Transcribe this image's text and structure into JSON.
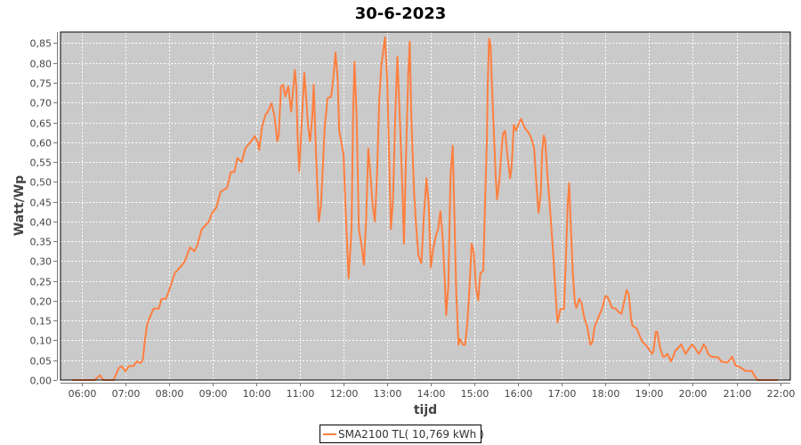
{
  "chart_data": {
    "type": "line",
    "title": "30-6-2023",
    "xlabel": "tijd",
    "ylabel": "Watt/Wp",
    "xlim": [
      "05:31",
      "22:14"
    ],
    "ylim": [
      0,
      0.878
    ],
    "grid": true,
    "legend_position": "bottom",
    "x_ticks": [
      "06:00",
      "07:00",
      "08:00",
      "09:00",
      "10:00",
      "11:00",
      "12:00",
      "13:00",
      "14:00",
      "15:00",
      "16:00",
      "17:00",
      "18:00",
      "19:00",
      "20:00",
      "21:00",
      "22:00"
    ],
    "y_ticks": [
      "0,00",
      "0,05",
      "0,10",
      "0,15",
      "0,20",
      "0,25",
      "0,30",
      "0,35",
      "0,40",
      "0,45",
      "0,50",
      "0,55",
      "0,60",
      "0,65",
      "0,70",
      "0,75",
      "0,80",
      "0,85"
    ],
    "colors": {
      "series": "#ff7f3f",
      "plot_background": "#cacaca",
      "grid": "#ffffff"
    },
    "series": [
      {
        "name": "SMA2100 TL( 10,769 kWh )",
        "points": [
          [
            "05:47",
            0
          ],
          [
            "06:18",
            0
          ],
          [
            "06:25",
            0.012
          ],
          [
            "06:30",
            0
          ],
          [
            "06:44",
            0
          ],
          [
            "06:51",
            0.03
          ],
          [
            "06:55",
            0.035
          ],
          [
            "07:00",
            0.022
          ],
          [
            "07:05",
            0.035
          ],
          [
            "07:11",
            0.035
          ],
          [
            "07:16",
            0.047
          ],
          [
            "07:21",
            0.043
          ],
          [
            "07:24",
            0.05
          ],
          [
            "07:27",
            0.1
          ],
          [
            "07:30",
            0.14
          ],
          [
            "07:33",
            0.155
          ],
          [
            "07:39",
            0.18
          ],
          [
            "07:46",
            0.18
          ],
          [
            "07:50",
            0.205
          ],
          [
            "07:56",
            0.205
          ],
          [
            "08:00",
            0.225
          ],
          [
            "08:08",
            0.27
          ],
          [
            "08:18",
            0.29
          ],
          [
            "08:22",
            0.3
          ],
          [
            "08:29",
            0.335
          ],
          [
            "08:35",
            0.325
          ],
          [
            "08:39",
            0.34
          ],
          [
            "08:45",
            0.38
          ],
          [
            "08:55",
            0.4
          ],
          [
            "08:59",
            0.42
          ],
          [
            "09:05",
            0.435
          ],
          [
            "09:11",
            0.475
          ],
          [
            "09:20",
            0.485
          ],
          [
            "09:25",
            0.525
          ],
          [
            "09:30",
            0.525
          ],
          [
            "09:34",
            0.56
          ],
          [
            "09:40",
            0.55
          ],
          [
            "09:45",
            0.585
          ],
          [
            "09:54",
            0.605
          ],
          [
            "09:58",
            0.615
          ],
          [
            "10:02",
            0.6
          ],
          [
            "10:04",
            0.58
          ],
          [
            "10:08",
            0.64
          ],
          [
            "10:13",
            0.67
          ],
          [
            "10:15",
            0.674
          ],
          [
            "10:21",
            0.698
          ],
          [
            "10:25",
            0.666
          ],
          [
            "10:29",
            0.602
          ],
          [
            "10:31",
            0.62
          ],
          [
            "10:34",
            0.741
          ],
          [
            "10:37",
            0.745
          ],
          [
            "10:40",
            0.715
          ],
          [
            "10:44",
            0.741
          ],
          [
            "10:48",
            0.677
          ],
          [
            "10:53",
            0.782
          ],
          [
            "10:55",
            0.741
          ],
          [
            "10:57",
            0.606
          ],
          [
            "10:59",
            0.527
          ],
          [
            "11:03",
            0.666
          ],
          [
            "11:06",
            0.775
          ],
          [
            "11:09",
            0.704
          ],
          [
            "11:11",
            0.644
          ],
          [
            "11:14",
            0.602
          ],
          [
            "11:17",
            0.666
          ],
          [
            "11:19",
            0.745
          ],
          [
            "11:22",
            0.576
          ],
          [
            "11:26",
            0.4
          ],
          [
            "11:29",
            0.441
          ],
          [
            "11:34",
            0.636
          ],
          [
            "11:38",
            0.711
          ],
          [
            "11:43",
            0.715
          ],
          [
            "11:46",
            0.764
          ],
          [
            "11:49",
            0.827
          ],
          [
            "11:52",
            0.756
          ],
          [
            "11:54",
            0.629
          ],
          [
            "12:00",
            0.569
          ],
          [
            "12:03",
            0.419
          ],
          [
            "12:07",
            0.257
          ],
          [
            "12:11",
            0.381
          ],
          [
            "12:13",
            0.666
          ],
          [
            "12:15",
            0.803
          ],
          [
            "12:18",
            0.666
          ],
          [
            "12:21",
            0.381
          ],
          [
            "12:25",
            0.336
          ],
          [
            "12:28",
            0.291
          ],
          [
            "12:31",
            0.404
          ],
          [
            "12:34",
            0.584
          ],
          [
            "12:37",
            0.516
          ],
          [
            "12:40",
            0.441
          ],
          [
            "12:43",
            0.4
          ],
          [
            "12:46",
            0.516
          ],
          [
            "12:49",
            0.704
          ],
          [
            "12:52",
            0.794
          ],
          [
            "12:57",
            0.865
          ],
          [
            "13:00",
            0.756
          ],
          [
            "13:03",
            0.539
          ],
          [
            "13:05",
            0.381
          ],
          [
            "13:08",
            0.456
          ],
          [
            "13:11",
            0.666
          ],
          [
            "13:14",
            0.816
          ],
          [
            "13:18",
            0.629
          ],
          [
            "13:21",
            0.479
          ],
          [
            "13:23",
            0.344
          ],
          [
            "13:26",
            0.576
          ],
          [
            "13:29",
            0.779
          ],
          [
            "13:31",
            0.854
          ],
          [
            "13:33",
            0.666
          ],
          [
            "13:37",
            0.471
          ],
          [
            "13:40",
            0.381
          ],
          [
            "13:43",
            0.314
          ],
          [
            "13:47",
            0.295
          ],
          [
            "13:50",
            0.404
          ],
          [
            "13:54",
            0.509
          ],
          [
            "13:57",
            0.441
          ],
          [
            "14:00",
            0.284
          ],
          [
            "14:03",
            0.329
          ],
          [
            "14:07",
            0.366
          ],
          [
            "14:10",
            0.381
          ],
          [
            "14:13",
            0.426
          ],
          [
            "14:16",
            0.366
          ],
          [
            "14:19",
            0.254
          ],
          [
            "14:21",
            0.164
          ],
          [
            "14:24",
            0.239
          ],
          [
            "14:27",
            0.516
          ],
          [
            "14:30",
            0.591
          ],
          [
            "14:32",
            0.441
          ],
          [
            "14:35",
            0.216
          ],
          [
            "14:38",
            0.089
          ],
          [
            "14:40",
            0.104
          ],
          [
            "14:44",
            0.089
          ],
          [
            "14:47",
            0.089
          ],
          [
            "14:50",
            0.141
          ],
          [
            "14:53",
            0.231
          ],
          [
            "14:56",
            0.344
          ],
          [
            "14:59",
            0.321
          ],
          [
            "15:02",
            0.231
          ],
          [
            "15:05",
            0.201
          ],
          [
            "15:08",
            0.269
          ],
          [
            "15:12",
            0.276
          ],
          [
            "15:15",
            0.479
          ],
          [
            "15:17",
            0.606
          ],
          [
            "15:18",
            0.734
          ],
          [
            "15:20",
            0.861
          ],
          [
            "15:22",
            0.846
          ],
          [
            "15:24",
            0.741
          ],
          [
            "15:26",
            0.651
          ],
          [
            "15:29",
            0.516
          ],
          [
            "15:31",
            0.456
          ],
          [
            "15:34",
            0.501
          ],
          [
            "15:37",
            0.576
          ],
          [
            "15:39",
            0.621
          ],
          [
            "15:42",
            0.629
          ],
          [
            "15:45",
            0.569
          ],
          [
            "15:49",
            0.509
          ],
          [
            "15:51",
            0.539
          ],
          [
            "15:54",
            0.644
          ],
          [
            "15:57",
            0.629
          ],
          [
            "16:00",
            0.644
          ],
          [
            "16:04",
            0.659
          ],
          [
            "16:09",
            0.636
          ],
          [
            "16:14",
            0.625
          ],
          [
            "16:18",
            0.61
          ],
          [
            "16:22",
            0.584
          ],
          [
            "16:25",
            0.494
          ],
          [
            "16:28",
            0.422
          ],
          [
            "16:31",
            0.471
          ],
          [
            "16:33",
            0.576
          ],
          [
            "16:35",
            0.617
          ],
          [
            "16:37",
            0.606
          ],
          [
            "16:40",
            0.524
          ],
          [
            "16:44",
            0.426
          ],
          [
            "16:48",
            0.321
          ],
          [
            "16:51",
            0.231
          ],
          [
            "16:54",
            0.145
          ],
          [
            "16:58",
            0.179
          ],
          [
            "17:03",
            0.179
          ],
          [
            "17:06",
            0.329
          ],
          [
            "17:08",
            0.441
          ],
          [
            "17:10",
            0.497
          ],
          [
            "17:12",
            0.404
          ],
          [
            "17:15",
            0.269
          ],
          [
            "17:18",
            0.194
          ],
          [
            "17:20",
            0.182
          ],
          [
            "17:24",
            0.205
          ],
          [
            "17:27",
            0.194
          ],
          [
            "17:31",
            0.156
          ],
          [
            "17:35",
            0.134
          ],
          [
            "17:39",
            0.089
          ],
          [
            "17:42",
            0.096
          ],
          [
            "17:45",
            0.134
          ],
          [
            "17:49",
            0.152
          ],
          [
            "17:55",
            0.179
          ],
          [
            "18:00",
            0.212
          ],
          [
            "18:03",
            0.209
          ],
          [
            "18:09",
            0.182
          ],
          [
            "18:14",
            0.18
          ],
          [
            "18:18",
            0.171
          ],
          [
            "18:22",
            0.167
          ],
          [
            "18:26",
            0.201
          ],
          [
            "18:29",
            0.227
          ],
          [
            "18:32",
            0.216
          ],
          [
            "18:35",
            0.156
          ],
          [
            "18:37",
            0.137
          ],
          [
            "18:43",
            0.13
          ],
          [
            "18:47",
            0.111
          ],
          [
            "18:51",
            0.096
          ],
          [
            "18:57",
            0.085
          ],
          [
            "19:01",
            0.074
          ],
          [
            "19:04",
            0.066
          ],
          [
            "19:06",
            0.074
          ],
          [
            "19:09",
            0.122
          ],
          [
            "19:11",
            0.122
          ],
          [
            "19:15",
            0.081
          ],
          [
            "19:19",
            0.059
          ],
          [
            "19:21",
            0.059
          ],
          [
            "19:25",
            0.066
          ],
          [
            "19:27",
            0.059
          ],
          [
            "19:30",
            0.047
          ],
          [
            "19:33",
            0.059
          ],
          [
            "19:36",
            0.074
          ],
          [
            "19:40",
            0.081
          ],
          [
            "19:44",
            0.09
          ],
          [
            "19:46",
            0.081
          ],
          [
            "19:50",
            0.066
          ],
          [
            "19:54",
            0.077
          ],
          [
            "19:59",
            0.09
          ],
          [
            "20:03",
            0.081
          ],
          [
            "20:08",
            0.066
          ],
          [
            "20:11",
            0.074
          ],
          [
            "20:15",
            0.09
          ],
          [
            "20:18",
            0.081
          ],
          [
            "20:21",
            0.066
          ],
          [
            "20:25",
            0.059
          ],
          [
            "20:35",
            0.057
          ],
          [
            "20:39",
            0.047
          ],
          [
            "20:47",
            0.044
          ],
          [
            "20:51",
            0.051
          ],
          [
            "20:54",
            0.059
          ],
          [
            "20:59",
            0.036
          ],
          [
            "21:03",
            0.034
          ],
          [
            "21:08",
            0.029
          ],
          [
            "21:12",
            0.023
          ],
          [
            "21:21",
            0.023
          ],
          [
            "21:25",
            0.01
          ],
          [
            "21:29",
            0
          ],
          [
            "21:57",
            0
          ]
        ]
      }
    ]
  }
}
